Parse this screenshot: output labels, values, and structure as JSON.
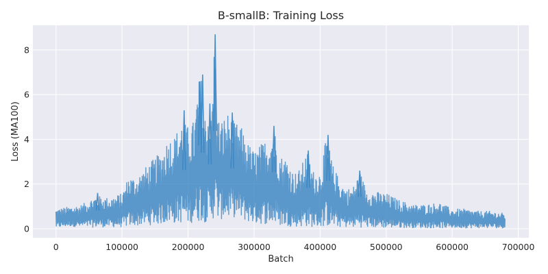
{
  "chart_data": {
    "type": "line",
    "title": "B-smallB: Training Loss",
    "xlabel": "Batch",
    "ylabel": "Loss (MA100)",
    "xlim": [
      -35000,
      716000
    ],
    "ylim": [
      -0.4,
      9.1
    ],
    "grid": true,
    "x_ticks": [
      0,
      100000,
      200000,
      300000,
      400000,
      500000,
      600000,
      700000
    ],
    "x_tick_labels": [
      "0",
      "100000",
      "200000",
      "300000",
      "400000",
      "500000",
      "600000",
      "700000"
    ],
    "y_ticks": [
      0,
      2,
      4,
      6,
      8
    ],
    "y_tick_labels": [
      "0",
      "2",
      "4",
      "6",
      "8"
    ],
    "colors": {
      "series": "#3a86c3",
      "plot_bg": "#eaeaf2",
      "grid": "#ffffff"
    },
    "series": [
      {
        "envelope": {
          "x": [
            0,
            20000,
            40000,
            60000,
            80000,
            100000,
            110000,
            120000,
            140000,
            160000,
            170000,
            180000,
            190000,
            200000,
            210000,
            215000,
            220000,
            225000,
            230000,
            235000,
            240000,
            245000,
            250000,
            260000,
            270000,
            280000,
            290000,
            300000,
            310000,
            320000,
            330000,
            340000,
            350000,
            360000,
            370000,
            380000,
            390000,
            400000,
            410000,
            420000,
            430000,
            440000,
            450000,
            460000,
            470000,
            480000,
            500000,
            520000,
            540000,
            560000,
            580000,
            600000,
            620000,
            640000,
            660000,
            680000
          ],
          "upper": [
            0.9,
            1.0,
            1.1,
            1.5,
            1.4,
            1.6,
            2.4,
            2.3,
            2.9,
            3.5,
            4.1,
            4.2,
            4.9,
            4.6,
            4.9,
            6.6,
            6.9,
            5.1,
            5.6,
            5.0,
            8.7,
            5.0,
            4.9,
            5.2,
            4.8,
            4.6,
            3.9,
            3.5,
            3.8,
            4.1,
            4.6,
            3.3,
            3.2,
            2.5,
            2.7,
            3.5,
            2.6,
            2.6,
            4.2,
            2.8,
            2.2,
            1.8,
            1.9,
            2.6,
            1.8,
            1.7,
            1.6,
            1.3,
            1.1,
            1.1,
            1.2,
            0.9,
            0.9,
            0.8,
            0.8,
            0.7
          ],
          "lower": [
            0.02,
            0.1,
            0.05,
            0.05,
            0.06,
            0.06,
            0.1,
            0.12,
            0.15,
            0.2,
            0.25,
            0.22,
            0.25,
            0.2,
            0.3,
            0.3,
            0.3,
            0.28,
            0.3,
            0.35,
            0.45,
            0.4,
            0.4,
            0.45,
            0.5,
            0.4,
            0.3,
            0.2,
            0.2,
            0.2,
            0.15,
            0.12,
            0.1,
            0.08,
            0.08,
            0.08,
            0.06,
            0.06,
            0.1,
            0.08,
            0.06,
            0.05,
            0.05,
            0.05,
            0.04,
            0.04,
            0.03,
            0.03,
            0.03,
            0.02,
            0.02,
            0.02,
            0.02,
            0.02,
            0.02,
            0.02
          ]
        },
        "peaks": [
          {
            "x": 241000,
            "y": 8.7
          },
          {
            "x": 222000,
            "y": 6.9
          },
          {
            "x": 218000,
            "y": 6.6
          },
          {
            "x": 233000,
            "y": 5.6
          },
          {
            "x": 194000,
            "y": 5.3
          },
          {
            "x": 267000,
            "y": 5.2
          },
          {
            "x": 330000,
            "y": 4.6
          },
          {
            "x": 412000,
            "y": 4.2
          },
          {
            "x": 382000,
            "y": 3.5
          },
          {
            "x": 460000,
            "y": 2.6
          },
          {
            "x": 63000,
            "y": 1.6
          }
        ]
      }
    ]
  }
}
